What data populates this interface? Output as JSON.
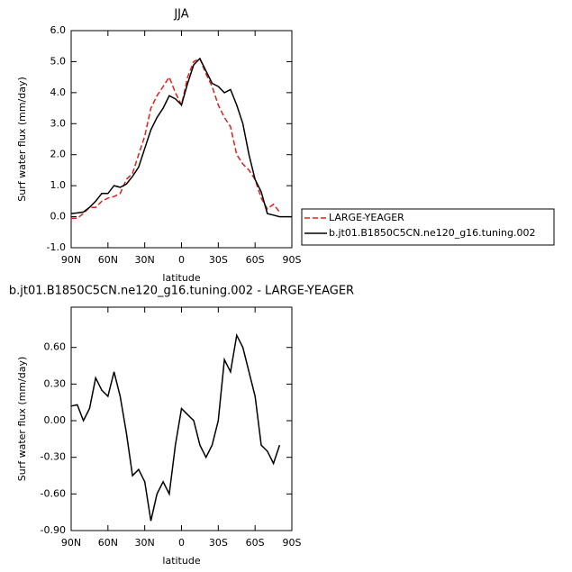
{
  "chart_data": [
    {
      "type": "line",
      "title": "JJA",
      "x_label": "latitude",
      "y_label": "Surf water flux (mm/day)",
      "x": [
        90,
        85,
        80,
        75,
        70,
        65,
        60,
        55,
        50,
        45,
        40,
        35,
        30,
        25,
        20,
        15,
        10,
        5,
        0,
        -5,
        -10,
        -15,
        -20,
        -25,
        -30,
        -35,
        -40,
        -45,
        -50,
        -55,
        -60,
        -65,
        -70,
        -75,
        -80,
        -85,
        -90
      ],
      "series": [
        {
          "name": "LARGE-YEAGER",
          "color": "#e0201b",
          "linestyle": "dashed",
          "values": [
            -0.05,
            -0.05,
            0.1,
            0.3,
            0.3,
            0.5,
            0.6,
            0.65,
            0.75,
            1.2,
            1.4,
            2.0,
            2.6,
            3.5,
            3.9,
            4.2,
            4.5,
            4.0,
            3.6,
            4.5,
            5.0,
            5.1,
            4.6,
            4.2,
            3.6,
            3.2,
            2.9,
            2.0,
            1.7,
            1.5,
            1.2,
            0.6,
            0.25,
            0.4,
            0.15,
            null,
            null
          ]
        },
        {
          "name": "b.jt01.B1850C5CN.ne120_g16.tuning.002",
          "color": "#000000",
          "linestyle": "solid",
          "values": [
            0.1,
            0.12,
            0.15,
            0.3,
            0.5,
            0.75,
            0.75,
            1.0,
            0.95,
            1.05,
            1.3,
            1.6,
            2.2,
            2.8,
            3.2,
            3.5,
            3.9,
            3.8,
            3.6,
            4.3,
            4.9,
            5.1,
            4.7,
            4.3,
            4.2,
            4.0,
            4.1,
            3.6,
            3.0,
            2.0,
            1.2,
            0.8,
            0.1,
            0.05,
            0.0,
            0.0,
            0.0
          ]
        }
      ],
      "xlim": [
        90,
        -90
      ],
      "xticks": [
        {
          "value": 90,
          "label": "90N"
        },
        {
          "value": 60,
          "label": "60N"
        },
        {
          "value": 30,
          "label": "30N"
        },
        0,
        {
          "value": -30,
          "label": "30S"
        },
        {
          "value": -60,
          "label": "60S"
        },
        {
          "value": -90,
          "label": "90S"
        }
      ],
      "ylim": [
        -1,
        6
      ],
      "yticks": [
        {
          "value": -1,
          "label": "-1.0"
        },
        {
          "value": 0,
          "label": "0.0"
        },
        {
          "value": 1,
          "label": "1.0"
        },
        {
          "value": 2,
          "label": "2.0"
        },
        {
          "value": 3,
          "label": "3.0"
        },
        {
          "value": 4,
          "label": "4.0"
        },
        {
          "value": 5,
          "label": "5.0"
        },
        {
          "value": 6,
          "label": "6.0"
        }
      ],
      "legend": "right"
    },
    {
      "type": "line",
      "title": "b.jt01.B1850C5CN.ne120_g16.tuning.002 - LARGE-YEAGER",
      "x_label": "latitude",
      "y_label": "Surf water flux (mm/day)",
      "x": [
        90,
        85,
        80,
        75,
        70,
        65,
        60,
        55,
        50,
        45,
        40,
        35,
        30,
        25,
        20,
        15,
        10,
        5,
        0,
        -5,
        -10,
        -15,
        -20,
        -25,
        -30,
        -35,
        -40,
        -45,
        -50,
        -55,
        -60,
        -65,
        -70,
        -75,
        -80,
        -85,
        -90
      ],
      "values": [
        0.12,
        0.13,
        0.0,
        0.1,
        0.35,
        0.25,
        0.2,
        0.4,
        0.2,
        -0.1,
        -0.45,
        -0.4,
        -0.5,
        -0.82,
        -0.6,
        -0.5,
        -0.6,
        -0.2,
        0.1,
        0.05,
        0.0,
        -0.2,
        -0.3,
        -0.2,
        0.0,
        0.5,
        0.4,
        0.7,
        0.6,
        0.4,
        0.2,
        -0.2,
        -0.25,
        -0.35,
        -0.2,
        null,
        null
      ],
      "color": "#000000",
      "xlim": [
        90,
        -90
      ],
      "xticks": [
        {
          "value": 90,
          "label": "90N"
        },
        {
          "value": 60,
          "label": "60N"
        },
        {
          "value": 30,
          "label": "30N"
        },
        0,
        {
          "value": -30,
          "label": "30S"
        },
        {
          "value": -60,
          "label": "60S"
        },
        {
          "value": -90,
          "label": "90S"
        }
      ],
      "ylim": [
        -0.9,
        0.93
      ],
      "yticks": [
        {
          "value": -0.9,
          "label": "-0.90"
        },
        {
          "value": -0.6,
          "label": "-0.60"
        },
        {
          "value": -0.3,
          "label": "-0.30"
        },
        {
          "value": 0,
          "label": "0.00"
        },
        {
          "value": 0.3,
          "label": "0.30"
        },
        {
          "value": 0.6,
          "label": "0.60"
        }
      ]
    }
  ]
}
